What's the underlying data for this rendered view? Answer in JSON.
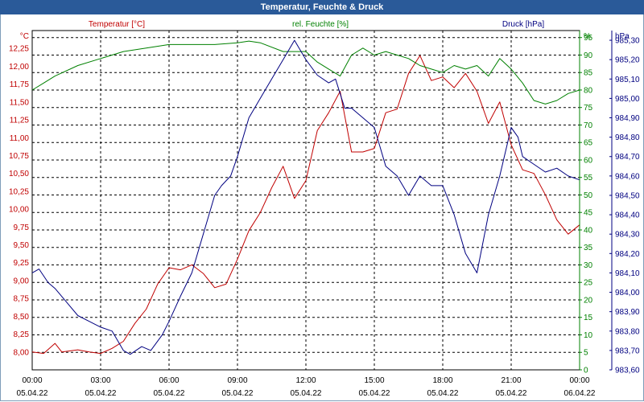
{
  "window": {
    "title": "Temperatur, Feuchte & Druck"
  },
  "chart_data": {
    "type": "line",
    "title": "Temperatur, Feuchte & Druck",
    "grid": true,
    "x_labels": [
      {
        "time": "00:00",
        "date": "05.04.22"
      },
      {
        "time": "03:00",
        "date": "05.04.22"
      },
      {
        "time": "06:00",
        "date": "05.04.22"
      },
      {
        "time": "09:00",
        "date": "05.04.22"
      },
      {
        "time": "12:00",
        "date": "05.04.22"
      },
      {
        "time": "15:00",
        "date": "05.04.22"
      },
      {
        "time": "18:00",
        "date": "05.04.22"
      },
      {
        "time": "21:00",
        "date": "05.04.22"
      },
      {
        "time": "00:00",
        "date": "06.04.22"
      }
    ],
    "xlim": [
      0,
      24
    ],
    "axes": {
      "temperature": {
        "header": "Temperatur [°C]",
        "unit": "°C",
        "color": "#c00000",
        "min": 7.75,
        "max": 12.5,
        "ticks": [
          "8,00",
          "8,25",
          "8,50",
          "8,75",
          "9,00",
          "9,25",
          "9,50",
          "9,75",
          "10,00",
          "10,25",
          "10,50",
          "10,75",
          "11,00",
          "11,25",
          "11,50",
          "11,75",
          "12,00",
          "12,25"
        ]
      },
      "humidity": {
        "header": "rel. Feuchte [%]",
        "unit": "%",
        "color": "#008000",
        "min": 0,
        "max": 97,
        "ticks": [
          "0",
          "5",
          "10",
          "15",
          "20",
          "25",
          "30",
          "35",
          "40",
          "45",
          "50",
          "55",
          "60",
          "65",
          "70",
          "75",
          "80",
          "85",
          "90",
          "95"
        ]
      },
      "pressure": {
        "header": "Druck [hPa]",
        "unit": "hPa",
        "color": "#000080",
        "min": 983.6,
        "max": 985.35,
        "ticks": [
          "983,60",
          "983,70",
          "983,80",
          "983,90",
          "984,00",
          "984,10",
          "984,20",
          "984,30",
          "984,40",
          "984,50",
          "984,60",
          "984,70",
          "984,80",
          "984,90",
          "985,00",
          "985,10",
          "985,20",
          "985,30"
        ]
      }
    },
    "series": [
      {
        "name": "Temperatur",
        "axis": "temperature",
        "color": "#c00000",
        "points": [
          [
            0,
            8.0
          ],
          [
            0.5,
            7.98
          ],
          [
            1,
            8.12
          ],
          [
            1.3,
            8.0
          ],
          [
            2,
            8.03
          ],
          [
            2.5,
            8.0
          ],
          [
            3,
            7.98
          ],
          [
            3.5,
            8.05
          ],
          [
            4,
            8.15
          ],
          [
            4.5,
            8.4
          ],
          [
            5,
            8.6
          ],
          [
            5.5,
            8.95
          ],
          [
            6,
            9.18
          ],
          [
            6.5,
            9.15
          ],
          [
            7,
            9.22
          ],
          [
            7.5,
            9.1
          ],
          [
            8,
            8.9
          ],
          [
            8.5,
            8.95
          ],
          [
            9,
            9.3
          ],
          [
            9.5,
            9.7
          ],
          [
            10,
            9.95
          ],
          [
            10.5,
            10.3
          ],
          [
            11,
            10.6
          ],
          [
            11.5,
            10.15
          ],
          [
            12,
            10.4
          ],
          [
            12.5,
            11.1
          ],
          [
            13,
            11.35
          ],
          [
            13.5,
            11.65
          ],
          [
            14,
            10.8
          ],
          [
            14.5,
            10.8
          ],
          [
            15,
            10.85
          ],
          [
            15.5,
            11.35
          ],
          [
            16,
            11.4
          ],
          [
            16.5,
            11.9
          ],
          [
            17,
            12.15
          ],
          [
            17.5,
            11.8
          ],
          [
            18,
            11.85
          ],
          [
            18.5,
            11.7
          ],
          [
            19,
            11.9
          ],
          [
            19.5,
            11.65
          ],
          [
            20,
            11.2
          ],
          [
            20.5,
            11.5
          ],
          [
            21,
            10.9
          ],
          [
            21.5,
            10.55
          ],
          [
            22,
            10.5
          ],
          [
            22.5,
            10.2
          ],
          [
            23,
            9.85
          ],
          [
            23.5,
            9.65
          ],
          [
            24,
            9.78
          ]
        ]
      },
      {
        "name": "rel. Feuchte",
        "axis": "humidity",
        "color": "#008000",
        "points": [
          [
            0,
            80
          ],
          [
            0.5,
            82
          ],
          [
            1,
            84
          ],
          [
            2,
            87
          ],
          [
            3,
            89
          ],
          [
            4,
            91
          ],
          [
            5,
            92
          ],
          [
            6,
            93
          ],
          [
            7,
            93
          ],
          [
            8,
            93
          ],
          [
            9,
            93.5
          ],
          [
            9.5,
            94
          ],
          [
            10,
            93.5
          ],
          [
            11,
            91
          ],
          [
            12,
            91
          ],
          [
            12.5,
            88
          ],
          [
            13,
            86
          ],
          [
            13.5,
            84
          ],
          [
            14,
            90
          ],
          [
            14.5,
            92
          ],
          [
            15,
            90
          ],
          [
            15.5,
            91
          ],
          [
            16,
            90
          ],
          [
            16.5,
            89
          ],
          [
            17,
            87
          ],
          [
            17.5,
            86
          ],
          [
            18,
            85
          ],
          [
            18.5,
            87
          ],
          [
            19,
            86
          ],
          [
            19.5,
            87
          ],
          [
            20,
            84
          ],
          [
            20.5,
            89
          ],
          [
            21,
            86
          ],
          [
            21.5,
            82
          ],
          [
            22,
            77
          ],
          [
            22.5,
            76
          ],
          [
            23,
            77
          ],
          [
            23.5,
            79
          ],
          [
            24,
            80
          ]
        ]
      },
      {
        "name": "Druck",
        "axis": "pressure",
        "color": "#000080",
        "points": [
          [
            0,
            984.1
          ],
          [
            0.3,
            984.12
          ],
          [
            0.7,
            984.05
          ],
          [
            1,
            984.02
          ],
          [
            1.5,
            983.95
          ],
          [
            2,
            983.88
          ],
          [
            2.5,
            983.85
          ],
          [
            3,
            983.82
          ],
          [
            3.5,
            983.8
          ],
          [
            4,
            983.7
          ],
          [
            4.3,
            983.68
          ],
          [
            4.8,
            983.72
          ],
          [
            5.2,
            983.7
          ],
          [
            5.7,
            983.78
          ],
          [
            6,
            983.85
          ],
          [
            6.5,
            983.98
          ],
          [
            7,
            984.1
          ],
          [
            7.5,
            984.3
          ],
          [
            8,
            984.5
          ],
          [
            8.3,
            984.55
          ],
          [
            8.7,
            984.6
          ],
          [
            9,
            984.7
          ],
          [
            9.5,
            984.9
          ],
          [
            10,
            985.0
          ],
          [
            10.5,
            985.1
          ],
          [
            11,
            985.2
          ],
          [
            11.5,
            985.3
          ],
          [
            12,
            985.2
          ],
          [
            12.5,
            985.12
          ],
          [
            13,
            985.08
          ],
          [
            13.3,
            985.1
          ],
          [
            13.7,
            984.95
          ],
          [
            14,
            984.95
          ],
          [
            14.5,
            984.9
          ],
          [
            15,
            984.85
          ],
          [
            15.5,
            984.65
          ],
          [
            16,
            984.6
          ],
          [
            16.5,
            984.5
          ],
          [
            17,
            984.6
          ],
          [
            17.5,
            984.55
          ],
          [
            18,
            984.55
          ],
          [
            18.5,
            984.4
          ],
          [
            19,
            984.2
          ],
          [
            19.5,
            984.1
          ],
          [
            20,
            984.4
          ],
          [
            20.5,
            984.6
          ],
          [
            21,
            984.85
          ],
          [
            21.3,
            984.8
          ],
          [
            21.5,
            984.7
          ],
          [
            22,
            984.66
          ],
          [
            22.5,
            984.62
          ],
          [
            23,
            984.64
          ],
          [
            23.5,
            984.6
          ],
          [
            24,
            984.58
          ]
        ]
      }
    ]
  }
}
